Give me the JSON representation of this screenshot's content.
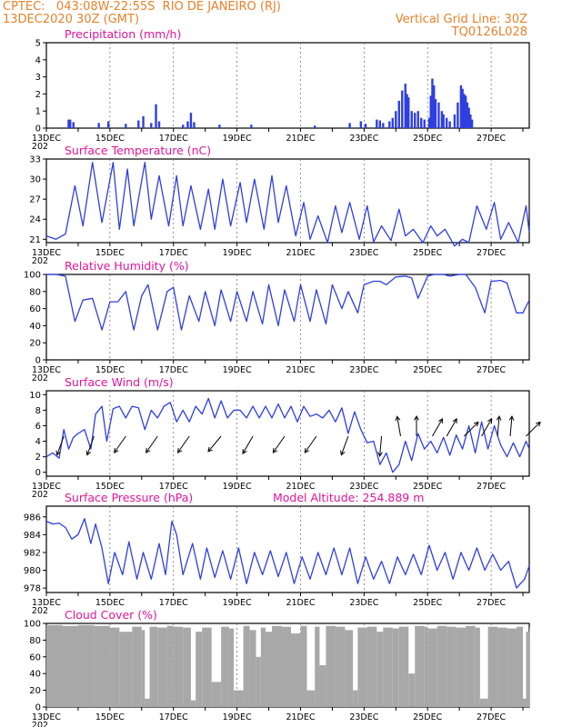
{
  "header": {
    "line1": "CPTEC:   043:08W-22:55S  RIO DE JANEIRO (RJ)",
    "line2": "13DEC2020 30Z (GMT)",
    "grid_note": "Vertical Grid Line: 30Z",
    "run_id": "TQ0126L028"
  },
  "colors": {
    "header": "#e8822a",
    "title": "#e0169a",
    "series": "#2f3fe0",
    "cloud": "#a8a8a8",
    "arrow": "#000000"
  },
  "x_tick_labels": [
    "13DEC",
    "15DEC",
    "17DEC",
    "19DEC",
    "21DEC",
    "23DEC",
    "25DEC",
    "27DEC"
  ],
  "x_year_label": "202",
  "chart_data": [
    {
      "type": "bar",
      "title": "Precipitation (mm/h)",
      "ylim": [
        0,
        5
      ],
      "yticks": [
        "0",
        "1",
        "2",
        "3",
        "4",
        "5"
      ],
      "x_range_days": [
        13,
        28.2
      ],
      "bars": [
        [
          13.7,
          0.5
        ],
        [
          13.75,
          0.5
        ],
        [
          13.85,
          0.35
        ],
        [
          14.65,
          0.3
        ],
        [
          14.95,
          0.4
        ],
        [
          15.5,
          0.25
        ],
        [
          15.9,
          0.45
        ],
        [
          16.05,
          0.7
        ],
        [
          16.3,
          0.3
        ],
        [
          16.45,
          1.4
        ],
        [
          16.55,
          0.4
        ],
        [
          17.3,
          0.2
        ],
        [
          17.45,
          0.4
        ],
        [
          17.55,
          0.9
        ],
        [
          17.65,
          0.35
        ],
        [
          18.45,
          0.2
        ],
        [
          19.45,
          0.2
        ],
        [
          21.45,
          0.15
        ],
        [
          22.55,
          0.3
        ],
        [
          22.9,
          0.4
        ],
        [
          23.05,
          0.25
        ],
        [
          23.4,
          0.5
        ],
        [
          23.5,
          0.45
        ],
        [
          23.6,
          0.3
        ],
        [
          23.8,
          0.4
        ],
        [
          23.9,
          0.6
        ],
        [
          24.0,
          1.0
        ],
        [
          24.1,
          1.6
        ],
        [
          24.2,
          2.2
        ],
        [
          24.3,
          2.6
        ],
        [
          24.35,
          2.0
        ],
        [
          24.4,
          1.8
        ],
        [
          24.5,
          1.0
        ],
        [
          24.6,
          0.9
        ],
        [
          24.7,
          1.0
        ],
        [
          24.8,
          0.6
        ],
        [
          24.9,
          0.5
        ],
        [
          25.05,
          0.6
        ],
        [
          25.1,
          1.9
        ],
        [
          25.15,
          2.9
        ],
        [
          25.2,
          2.5
        ],
        [
          25.25,
          1.7
        ],
        [
          25.35,
          1.5
        ],
        [
          25.45,
          1.0
        ],
        [
          25.5,
          0.8
        ],
        [
          25.6,
          0.6
        ],
        [
          25.7,
          0.4
        ],
        [
          25.85,
          0.8
        ],
        [
          25.95,
          1.5
        ],
        [
          26.05,
          2.5
        ],
        [
          26.1,
          2.3
        ],
        [
          26.15,
          2.0
        ],
        [
          26.2,
          1.9
        ],
        [
          26.25,
          1.5
        ],
        [
          26.3,
          1.2
        ],
        [
          26.35,
          0.8
        ],
        [
          26.4,
          0.5
        ]
      ]
    },
    {
      "type": "line",
      "title": "Surface Temperature (nC)",
      "ylim": [
        20.5,
        33
      ],
      "yticks": [
        "21",
        "24",
        "27",
        "30",
        "33"
      ],
      "x_range_days": [
        13,
        28.2
      ],
      "x": [
        13.0,
        13.3,
        13.6,
        13.9,
        14.15,
        14.45,
        14.75,
        15.1,
        15.3,
        15.55,
        15.75,
        16.1,
        16.3,
        16.55,
        16.85,
        17.1,
        17.3,
        17.55,
        17.85,
        18.1,
        18.3,
        18.55,
        18.8,
        19.1,
        19.3,
        19.55,
        19.85,
        20.1,
        20.3,
        20.55,
        20.85,
        21.1,
        21.3,
        21.55,
        21.85,
        22.1,
        22.3,
        22.55,
        22.85,
        23.1,
        23.3,
        23.55,
        23.85,
        24.1,
        24.3,
        24.55,
        24.85,
        25.1,
        25.3,
        25.55,
        25.85,
        26.1,
        26.3,
        26.55,
        26.85,
        27.1,
        27.3,
        27.55,
        27.85,
        28.1,
        28.2
      ],
      "y": [
        21.5,
        21.0,
        21.8,
        29.0,
        23.0,
        32.5,
        23.5,
        32.5,
        22.5,
        31.5,
        23.0,
        32.5,
        24.0,
        30.5,
        23.0,
        30.5,
        23.0,
        29.0,
        22.5,
        28.5,
        22.5,
        30.0,
        23.0,
        29.5,
        23.5,
        30.0,
        22.5,
        30.5,
        23.5,
        29.0,
        21.5,
        26.5,
        21.0,
        24.5,
        20.5,
        26.0,
        22.0,
        26.5,
        21.0,
        26.0,
        20.6,
        23.0,
        20.8,
        25.5,
        21.5,
        22.5,
        20.5,
        23.0,
        21.5,
        22.5,
        20.0,
        21.0,
        20.5,
        26.0,
        22.5,
        26.5,
        21.0,
        23.5,
        20.5,
        26.0,
        22.0
      ]
    },
    {
      "type": "line",
      "title": "Relative Humidity (%)",
      "ylim": [
        0,
        100
      ],
      "yticks": [
        "0",
        "20",
        "40",
        "60",
        "80",
        "100"
      ],
      "x_range_days": [
        13,
        28.2
      ],
      "x": [
        13.0,
        13.3,
        13.6,
        13.9,
        14.15,
        14.45,
        14.75,
        15.0,
        15.25,
        15.5,
        15.75,
        16.0,
        16.2,
        16.5,
        16.8,
        17.0,
        17.25,
        17.5,
        17.8,
        18.0,
        18.3,
        18.5,
        18.8,
        19.0,
        19.3,
        19.5,
        19.8,
        20.0,
        20.3,
        20.5,
        20.8,
        21.0,
        21.3,
        21.5,
        21.8,
        22.0,
        22.3,
        22.5,
        22.8,
        23.0,
        23.3,
        23.5,
        23.7,
        24.0,
        24.3,
        24.5,
        24.7,
        25.0,
        25.2,
        25.5,
        25.7,
        26.0,
        26.2,
        26.5,
        26.8,
        27.0,
        27.3,
        27.5,
        27.8,
        28.0,
        28.2
      ],
      "y": [
        100,
        100,
        98,
        45,
        70,
        72,
        35,
        68,
        68,
        80,
        35,
        75,
        88,
        35,
        80,
        85,
        35,
        75,
        45,
        80,
        40,
        82,
        45,
        80,
        45,
        80,
        42,
        88,
        40,
        82,
        45,
        88,
        45,
        82,
        42,
        88,
        60,
        80,
        55,
        88,
        92,
        92,
        88,
        97,
        98,
        96,
        72,
        98,
        100,
        100,
        98,
        100,
        100,
        85,
        55,
        92,
        93,
        90,
        55,
        55,
        70
      ]
    },
    {
      "type": "line",
      "title": "Surface Wind (m/s)",
      "ylim": [
        -0.5,
        10.5
      ],
      "yticks": [
        "0",
        "2",
        "4",
        "6",
        "8",
        "10"
      ],
      "x_range_days": [
        13,
        28.2
      ],
      "x": [
        13.0,
        13.2,
        13.4,
        13.55,
        13.7,
        13.85,
        14.0,
        14.2,
        14.4,
        14.55,
        14.75,
        14.9,
        15.1,
        15.3,
        15.5,
        15.7,
        15.9,
        16.1,
        16.3,
        16.5,
        16.7,
        16.9,
        17.1,
        17.3,
        17.5,
        17.7,
        17.9,
        18.1,
        18.3,
        18.5,
        18.7,
        18.9,
        19.1,
        19.3,
        19.5,
        19.7,
        19.9,
        20.1,
        20.3,
        20.5,
        20.7,
        20.9,
        21.1,
        21.3,
        21.5,
        21.7,
        21.9,
        22.1,
        22.3,
        22.5,
        22.7,
        22.9,
        23.1,
        23.3,
        23.5,
        23.7,
        23.9,
        24.1,
        24.3,
        24.5,
        24.7,
        24.9,
        25.1,
        25.3,
        25.5,
        25.7,
        25.9,
        26.1,
        26.3,
        26.5,
        26.7,
        26.9,
        27.1,
        27.3,
        27.5,
        27.7,
        27.9,
        28.1,
        28.2
      ],
      "y": [
        2.0,
        2.5,
        1.8,
        5.5,
        3.0,
        4.5,
        5.0,
        5.5,
        3.0,
        7.5,
        8.5,
        4.0,
        8.2,
        8.5,
        7.0,
        8.5,
        8.3,
        5.5,
        8.0,
        7.0,
        8.5,
        9.0,
        6.5,
        8.0,
        6.5,
        8.5,
        7.5,
        9.5,
        7.0,
        9.2,
        7.0,
        8.0,
        8.0,
        7.0,
        8.5,
        7.0,
        8.5,
        7.0,
        8.8,
        7.0,
        8.5,
        6.5,
        8.5,
        7.2,
        7.5,
        7.0,
        8.0,
        6.5,
        8.3,
        5.0,
        7.8,
        5.5,
        3.8,
        4.0,
        1.0,
        2.5,
        0.0,
        1.0,
        4.0,
        1.5,
        5.0,
        3.0,
        4.0,
        2.5,
        4.5,
        2.2,
        4.8,
        3.0,
        6.0,
        2.5,
        6.5,
        3.0,
        6.0,
        3.5,
        2.0,
        3.8,
        2.0,
        4.0,
        3.0
      ],
      "arrows": [
        [
          13.55,
          200
        ],
        [
          14.5,
          200
        ],
        [
          15.5,
          215
        ],
        [
          16.5,
          215
        ],
        [
          17.5,
          215
        ],
        [
          18.5,
          220
        ],
        [
          19.5,
          210
        ],
        [
          20.5,
          215
        ],
        [
          21.5,
          215
        ],
        [
          22.5,
          200
        ],
        [
          23.55,
          185
        ],
        [
          24.15,
          350
        ],
        [
          24.65,
          0
        ],
        [
          25.15,
          30
        ],
        [
          25.6,
          30
        ],
        [
          26.15,
          45
        ],
        [
          26.7,
          30
        ],
        [
          27.2,
          5
        ],
        [
          27.6,
          5
        ],
        [
          28.1,
          45
        ]
      ]
    },
    {
      "type": "line",
      "title": "Surface Pressure (hPa)",
      "annotation": "Model Altitude: 254.889 m",
      "ylim": [
        977.5,
        987.2
      ],
      "yticks": [
        "978",
        "980",
        "982",
        "984",
        "986"
      ],
      "x_range_days": [
        13,
        28.2
      ],
      "x": [
        13.0,
        13.2,
        13.4,
        13.6,
        13.8,
        14.0,
        14.2,
        14.4,
        14.55,
        14.75,
        14.95,
        15.15,
        15.4,
        15.6,
        15.85,
        16.05,
        16.3,
        16.55,
        16.75,
        16.95,
        17.1,
        17.3,
        17.6,
        17.85,
        18.05,
        18.3,
        18.55,
        18.8,
        19.05,
        19.3,
        19.55,
        19.8,
        20.05,
        20.3,
        20.55,
        20.8,
        21.05,
        21.3,
        21.55,
        21.8,
        22.05,
        22.3,
        22.55,
        22.8,
        23.05,
        23.3,
        23.55,
        23.8,
        24.05,
        24.3,
        24.55,
        24.8,
        25.05,
        25.3,
        25.55,
        25.8,
        26.05,
        26.3,
        26.55,
        26.8,
        27.05,
        27.3,
        27.55,
        27.8,
        28.05,
        28.2
      ],
      "y": [
        985.5,
        985.2,
        985.3,
        984.8,
        983.5,
        984.0,
        985.8,
        983.0,
        985.2,
        982.5,
        978.5,
        982.0,
        979.5,
        983.2,
        979.0,
        982.0,
        979.0,
        983.0,
        979.5,
        985.5,
        984.0,
        979.5,
        983.0,
        979.0,
        982.5,
        979.2,
        982.2,
        979.0,
        982.5,
        978.5,
        982.0,
        979.5,
        982.2,
        979.3,
        982.0,
        978.5,
        981.5,
        979.0,
        982.0,
        979.5,
        982.5,
        979.5,
        982.5,
        978.5,
        981.5,
        979.0,
        981.0,
        978.5,
        981.5,
        979.5,
        981.8,
        979.5,
        982.8,
        980.0,
        982.0,
        979.0,
        982.0,
        980.0,
        982.5,
        980.0,
        981.8,
        980.0,
        981.0,
        978.0,
        979.0,
        980.5
      ]
    },
    {
      "type": "bar",
      "title": "Cloud Cover (%)",
      "ylim": [
        0,
        100
      ],
      "yticks": [
        "0",
        "20",
        "40",
        "60",
        "80",
        "100"
      ],
      "x_range_days": [
        13,
        28.2
      ],
      "x": [
        13.0,
        13.5,
        14.0,
        14.5,
        15.0,
        15.3,
        15.7,
        16.0,
        16.1,
        16.25,
        16.5,
        16.8,
        17.0,
        17.3,
        17.55,
        17.7,
        17.9,
        18.2,
        18.5,
        18.75,
        18.9,
        19.2,
        19.4,
        19.6,
        19.75,
        19.9,
        20.1,
        20.4,
        20.7,
        21.0,
        21.2,
        21.45,
        21.6,
        21.8,
        22.1,
        22.4,
        22.65,
        22.8,
        23.1,
        23.4,
        23.6,
        23.9,
        24.1,
        24.4,
        24.6,
        24.9,
        25.0,
        25.3,
        25.6,
        25.9,
        26.2,
        26.5,
        26.65,
        26.9,
        27.2,
        27.5,
        27.8,
        28.0,
        28.1,
        28.2
      ],
      "y": [
        98,
        97,
        98,
        97,
        95,
        90,
        96,
        92,
        10,
        96,
        95,
        97,
        96,
        95,
        8,
        90,
        95,
        30,
        96,
        94,
        20,
        97,
        92,
        60,
        95,
        90,
        97,
        96,
        88,
        97,
        20,
        96,
        50,
        97,
        96,
        92,
        20,
        95,
        96,
        90,
        95,
        94,
        96,
        40,
        97,
        96,
        94,
        97,
        96,
        95,
        97,
        95,
        10,
        96,
        95,
        94,
        96,
        10,
        90,
        95
      ]
    }
  ]
}
